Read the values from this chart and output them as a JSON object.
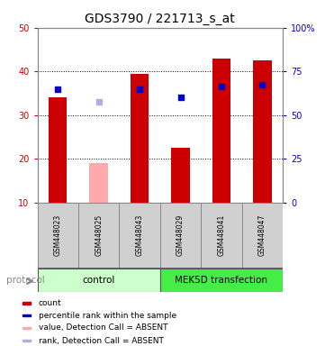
{
  "title": "GDS3790 / 221713_s_at",
  "samples": [
    "GSM448023",
    "GSM448025",
    "GSM448043",
    "GSM448029",
    "GSM448041",
    "GSM448047"
  ],
  "bar_values": [
    34.0,
    19.0,
    39.5,
    22.5,
    43.0,
    42.5
  ],
  "bar_colors": [
    "#cc0000",
    "#ffaaaa",
    "#cc0000",
    "#cc0000",
    "#cc0000",
    "#cc0000"
  ],
  "rank_values": [
    36.0,
    33.0,
    36.0,
    34.0,
    36.5,
    37.0
  ],
  "rank_colors": [
    "#0000cc",
    "#b0b0e0",
    "#0000cc",
    "#0000cc",
    "#0000cc",
    "#0000cc"
  ],
  "ylim_left": [
    10,
    50
  ],
  "ylim_right": [
    0,
    100
  ],
  "yticks_left": [
    10,
    20,
    30,
    40,
    50
  ],
  "yticks_right": [
    0,
    25,
    50,
    75,
    100
  ],
  "ytick_labels_left": [
    "10",
    "20",
    "30",
    "40",
    "50"
  ],
  "ytick_labels_right": [
    "0",
    "25",
    "50",
    "75",
    "100%"
  ],
  "legend_items": [
    {
      "color": "#cc0000",
      "label": "count"
    },
    {
      "color": "#0000cc",
      "label": "percentile rank within the sample"
    },
    {
      "color": "#ffaaaa",
      "label": "value, Detection Call = ABSENT"
    },
    {
      "color": "#b0b0e0",
      "label": "rank, Detection Call = ABSENT"
    }
  ],
  "bar_width": 0.45,
  "rank_square_size": 25,
  "left_axis_color": "#cc0000",
  "right_axis_color": "#0000cc",
  "bg_color": "#ffffff",
  "plot_bg": "#ffffff",
  "title_fontsize": 10,
  "tick_fontsize": 7,
  "sample_fontsize": 5.5,
  "group_fontsize": 7.5,
  "legend_fontsize": 6.5,
  "protocol_fontsize": 7.5,
  "control_color": "#ccffcc",
  "mek_color": "#44ee44",
  "sample_bg": "#d0d0d0",
  "sample_border": "#888888"
}
